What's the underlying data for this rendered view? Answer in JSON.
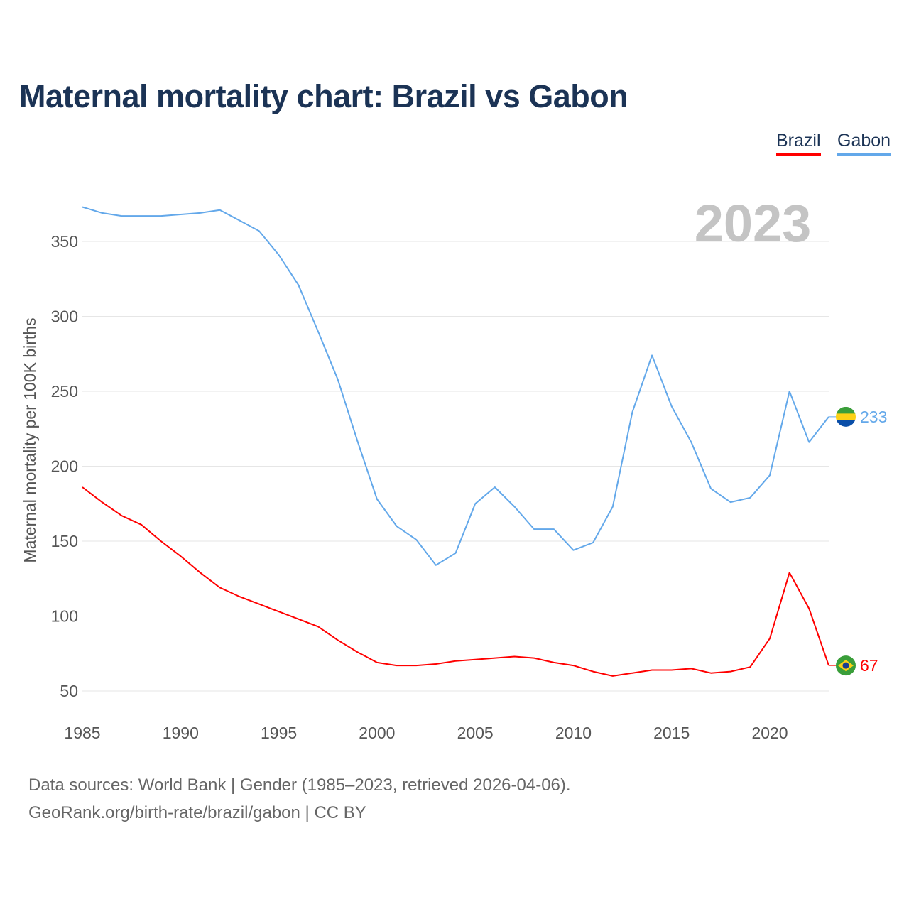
{
  "title": "Maternal mortality chart: Brazil vs Gabon",
  "legend": {
    "brazil": "Brazil",
    "gabon": "Gabon"
  },
  "year_label": "2023",
  "footer": {
    "line1": "Data sources: World Bank | Gender (1985–2023, retrieved 2026-04-06).",
    "line2": "GeoRank.org/birth-rate/brazil/gabon | CC BY"
  },
  "chart_data": {
    "type": "line",
    "title": "Maternal mortality chart: Brazil vs Gabon",
    "xlabel": "",
    "ylabel": "Maternal mortality per 100K births",
    "xlim": [
      1985,
      2023
    ],
    "ylim": [
      30,
      380
    ],
    "xticks": [
      1985,
      1990,
      1995,
      2000,
      2005,
      2010,
      2015,
      2020
    ],
    "yticks": [
      50,
      100,
      150,
      200,
      250,
      300,
      350
    ],
    "grid": true,
    "legend_position": "top-right",
    "x": [
      1985,
      1986,
      1987,
      1988,
      1989,
      1990,
      1991,
      1992,
      1993,
      1994,
      1995,
      1996,
      1997,
      1998,
      1999,
      2000,
      2001,
      2002,
      2003,
      2004,
      2005,
      2006,
      2007,
      2008,
      2009,
      2010,
      2011,
      2012,
      2013,
      2014,
      2015,
      2016,
      2017,
      2018,
      2019,
      2020,
      2021,
      2022,
      2023
    ],
    "series": [
      {
        "name": "Brazil",
        "color": "#ff0000",
        "end_label": "67",
        "values": [
          186,
          176,
          167,
          161,
          150,
          140,
          129,
          119,
          113,
          108,
          103,
          98,
          93,
          84,
          76,
          69,
          67,
          67,
          68,
          70,
          71,
          72,
          73,
          72,
          69,
          67,
          63,
          60,
          62,
          64,
          64,
          65,
          62,
          63,
          66,
          85,
          129,
          105,
          67
        ]
      },
      {
        "name": "Gabon",
        "color": "#63a8ea",
        "end_label": "233",
        "values": [
          373,
          369,
          367,
          367,
          367,
          368,
          369,
          371,
          364,
          357,
          341,
          321,
          290,
          258,
          217,
          178,
          160,
          151,
          134,
          142,
          175,
          186,
          173,
          158,
          158,
          144,
          149,
          173,
          236,
          274,
          240,
          216,
          185,
          176,
          179,
          194,
          250,
          216,
          233
        ]
      }
    ]
  }
}
